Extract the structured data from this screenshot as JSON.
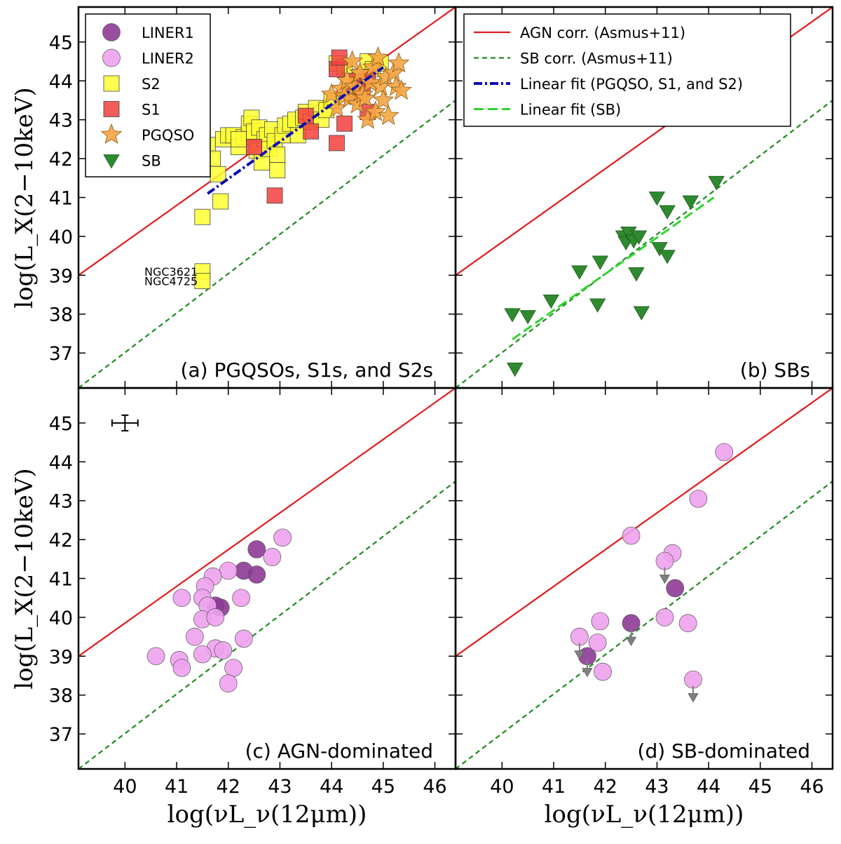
{
  "figure": {
    "ylabel": "log(L_X(2−10keV)",
    "xlabel": "log(νL_ν(12μm))",
    "xlim": [
      39.1,
      46.4
    ],
    "ylim": [
      36.1,
      45.9
    ]
  },
  "colors": {
    "liner1": "#8e3a96",
    "liner2": "#eea2ee",
    "s2": "#ffff33",
    "s1": "#f24040",
    "pgqso": "#f5a543",
    "sb": "#2f8a2f",
    "agn_line": "#e31a1c",
    "sb_line": "#1f8b1f",
    "fit_agn": "#0a0ab4",
    "fit_sb": "#2cd62c",
    "upper": "#808080"
  },
  "chart_data": [
    {
      "type": "scatter",
      "panel": "a",
      "title": "(a) PGQSOs, S1s, and S2s",
      "xticks": [
        40,
        41,
        42,
        43,
        44,
        45,
        46
      ],
      "yticks": [
        37,
        38,
        39,
        40,
        41,
        42,
        43,
        44,
        45
      ],
      "annotations": [
        {
          "text": "NGC3621",
          "x": 41.6,
          "y": 39.1
        },
        {
          "text": "NGC4725",
          "x": 41.6,
          "y": 38.85
        }
      ],
      "series": [
        {
          "name": "S2",
          "marker": "square",
          "color": "s2",
          "points": [
            [
              41.5,
              42.35
            ],
            [
              41.6,
              42.35
            ],
            [
              41.7,
              42.0
            ],
            [
              41.8,
              41.6
            ],
            [
              41.9,
              42.5
            ],
            [
              42.0,
              42.6
            ],
            [
              42.1,
              42.6
            ],
            [
              42.2,
              42.3
            ],
            [
              42.3,
              42.55
            ],
            [
              42.4,
              42.65
            ],
            [
              42.4,
              42.9
            ],
            [
              42.45,
              43.05
            ],
            [
              42.5,
              42.7
            ],
            [
              42.55,
              42.2
            ],
            [
              42.6,
              42.8
            ],
            [
              42.65,
              41.9
            ],
            [
              42.7,
              42.5
            ],
            [
              42.75,
              42.6
            ],
            [
              42.8,
              42.25
            ],
            [
              42.85,
              42.75
            ],
            [
              42.9,
              42.45
            ],
            [
              42.95,
              42.1
            ],
            [
              42.95,
              41.7
            ],
            [
              43.05,
              42.6
            ],
            [
              43.1,
              42.85
            ],
            [
              43.2,
              42.9
            ],
            [
              43.3,
              43.0
            ],
            [
              43.35,
              42.6
            ],
            [
              43.45,
              43.05
            ],
            [
              43.5,
              43.2
            ],
            [
              43.6,
              42.95
            ],
            [
              43.7,
              43.3
            ],
            [
              43.8,
              43.0
            ],
            [
              43.9,
              43.25
            ],
            [
              44.0,
              43.5
            ],
            [
              44.1,
              44.45
            ],
            [
              44.25,
              44.35
            ],
            [
              44.35,
              44.0
            ],
            [
              44.4,
              43.75
            ],
            [
              44.55,
              44.1
            ],
            [
              44.7,
              44.5
            ],
            [
              44.8,
              44.3
            ],
            [
              44.95,
              44.45
            ],
            [
              41.85,
              40.9
            ],
            [
              41.5,
              40.5
            ],
            [
              41.5,
              39.1
            ],
            [
              41.5,
              38.85
            ],
            [
              42.2,
              42.5
            ]
          ]
        },
        {
          "name": "S1",
          "marker": "square",
          "color": "s1",
          "points": [
            [
              42.5,
              42.3
            ],
            [
              42.9,
              41.05
            ],
            [
              43.5,
              43.1
            ],
            [
              43.6,
              42.7
            ],
            [
              44.1,
              44.3
            ],
            [
              44.15,
              44.6
            ],
            [
              44.1,
              42.4
            ],
            [
              44.25,
              42.9
            ],
            [
              44.4,
              43.7
            ],
            [
              44.5,
              44.0
            ],
            [
              44.6,
              43.8
            ],
            [
              44.7,
              44.1
            ],
            [
              44.7,
              43.2
            ]
          ]
        },
        {
          "name": "PGQSO",
          "marker": "star",
          "color": "pgqso",
          "points": [
            [
              44.0,
              43.65
            ],
            [
              44.1,
              43.3
            ],
            [
              44.2,
              43.8
            ],
            [
              44.25,
              43.6
            ],
            [
              44.3,
              44.0
            ],
            [
              44.35,
              43.55
            ],
            [
              44.4,
              44.5
            ],
            [
              44.45,
              43.85
            ],
            [
              44.5,
              43.4
            ],
            [
              44.55,
              44.2
            ],
            [
              44.6,
              43.65
            ],
            [
              44.65,
              43.55
            ],
            [
              44.7,
              43.0
            ],
            [
              44.75,
              43.95
            ],
            [
              44.8,
              44.35
            ],
            [
              44.85,
              43.2
            ],
            [
              44.9,
              44.6
            ],
            [
              44.95,
              43.85
            ],
            [
              45.0,
              43.5
            ],
            [
              45.05,
              44.1
            ],
            [
              45.1,
              43.1
            ],
            [
              45.2,
              44.2
            ],
            [
              45.25,
              43.85
            ],
            [
              45.3,
              44.45
            ],
            [
              45.35,
              43.75
            ]
          ]
        },
        {
          "name": "Linear fit (PGQSO, S1, and S2)",
          "marker": "line",
          "color": "fit_agn",
          "points": [
            [
              41.6,
              41.1
            ],
            [
              45.0,
              44.35
            ]
          ]
        }
      ]
    },
    {
      "type": "scatter",
      "panel": "b",
      "title": "(b) SBs",
      "xticks": [
        40,
        41,
        42,
        43,
        44,
        45,
        46
      ],
      "yticks": [
        37,
        38,
        39,
        40,
        41,
        42,
        43,
        44,
        45
      ],
      "series": [
        {
          "name": "SB",
          "marker": "triangle-down",
          "color": "sb",
          "points": [
            [
              40.2,
              38.0
            ],
            [
              40.25,
              36.6
            ],
            [
              40.5,
              37.95
            ],
            [
              40.95,
              38.35
            ],
            [
              41.5,
              39.1
            ],
            [
              41.85,
              38.25
            ],
            [
              41.9,
              39.35
            ],
            [
              42.35,
              40.0
            ],
            [
              42.4,
              39.85
            ],
            [
              42.45,
              40.1
            ],
            [
              42.55,
              39.9
            ],
            [
              42.6,
              39.05
            ],
            [
              42.65,
              40.0
            ],
            [
              42.7,
              38.05
            ],
            [
              43.0,
              41.0
            ],
            [
              43.05,
              39.7
            ],
            [
              43.2,
              39.5
            ],
            [
              43.2,
              40.65
            ],
            [
              43.65,
              40.9
            ],
            [
              44.15,
              41.4
            ]
          ]
        },
        {
          "name": "Linear fit (SB)",
          "marker": "line",
          "color": "fit_sb",
          "points": [
            [
              40.2,
              37.35
            ],
            [
              44.1,
              41.0
            ]
          ]
        }
      ]
    },
    {
      "type": "scatter",
      "panel": "c",
      "title": "(c) AGN-dominated",
      "xticks": [
        40,
        41,
        42,
        43,
        44,
        45,
        46
      ],
      "yticks": [
        37,
        38,
        39,
        40,
        41,
        42,
        43,
        44,
        45
      ],
      "errorbar": {
        "x": 40.0,
        "y": 45.0,
        "xerr": 0.25,
        "yerr": 0.2
      },
      "series": [
        {
          "name": "LINER1",
          "marker": "circle",
          "color": "liner1",
          "points": [
            [
              42.55,
              41.75
            ],
            [
              42.3,
              41.2
            ],
            [
              42.55,
              41.1
            ],
            [
              41.85,
              40.25
            ],
            [
              41.75,
              40.3
            ]
          ]
        },
        {
          "name": "LINER2",
          "marker": "circle",
          "color": "liner2",
          "points": [
            [
              43.05,
              42.05
            ],
            [
              42.85,
              41.55
            ],
            [
              42.0,
              41.2
            ],
            [
              41.7,
              41.05
            ],
            [
              41.55,
              40.8
            ],
            [
              41.1,
              40.5
            ],
            [
              41.5,
              40.5
            ],
            [
              41.6,
              40.3
            ],
            [
              42.25,
              40.5
            ],
            [
              41.5,
              39.95
            ],
            [
              41.75,
              40.0
            ],
            [
              41.35,
              39.5
            ],
            [
              41.75,
              39.2
            ],
            [
              41.9,
              39.15
            ],
            [
              41.5,
              39.05
            ],
            [
              41.05,
              38.9
            ],
            [
              41.1,
              38.7
            ],
            [
              40.6,
              39.0
            ],
            [
              42.1,
              38.7
            ],
            [
              42.3,
              39.45
            ],
            [
              42.0,
              38.3
            ]
          ]
        }
      ]
    },
    {
      "type": "scatter",
      "panel": "d",
      "title": "(d) SB-dominated",
      "xticks": [
        40,
        41,
        42,
        43,
        44,
        45,
        46
      ],
      "yticks": [
        37,
        38,
        39,
        40,
        41,
        42,
        43,
        44,
        45
      ],
      "series": [
        {
          "name": "LINER1",
          "marker": "circle",
          "color": "liner1",
          "points": [
            [
              43.35,
              40.75
            ],
            [
              42.5,
              39.85
            ],
            [
              41.65,
              39.0
            ]
          ]
        },
        {
          "name": "LINER2",
          "marker": "circle",
          "color": "liner2",
          "points": [
            [
              44.3,
              44.25
            ],
            [
              43.8,
              43.05
            ],
            [
              42.5,
              42.1
            ],
            [
              43.3,
              41.65
            ],
            [
              43.15,
              41.45
            ],
            [
              43.15,
              40.0
            ],
            [
              43.6,
              39.85
            ],
            [
              41.9,
              39.9
            ],
            [
              41.5,
              39.5
            ],
            [
              41.85,
              39.35
            ],
            [
              41.95,
              38.6
            ],
            [
              43.7,
              38.4
            ]
          ]
        },
        {
          "name": "upper limits",
          "marker": "arrow-down",
          "color": "upper",
          "points": [
            [
              43.15,
              41.0
            ],
            [
              42.5,
              39.4
            ],
            [
              41.5,
              39.05
            ],
            [
              41.65,
              38.6
            ],
            [
              43.7,
              37.95
            ]
          ]
        }
      ]
    }
  ],
  "reference_lines": {
    "agn": {
      "label": "AGN corr. (Asmus+11)",
      "points": [
        [
          39.1,
          39.0
        ],
        [
          46.4,
          45.9
        ]
      ]
    },
    "sb": {
      "label": "SB corr. (Asmus+11)",
      "points": [
        [
          39.1,
          36.1
        ],
        [
          46.4,
          43.5
        ]
      ]
    }
  },
  "legends": {
    "a": [
      {
        "label": "LINER1",
        "marker": "circle",
        "color": "liner1"
      },
      {
        "label": "LINER2",
        "marker": "circle",
        "color": "liner2"
      },
      {
        "label": "S2",
        "marker": "square",
        "color": "s2"
      },
      {
        "label": "S1",
        "marker": "square",
        "color": "s1"
      },
      {
        "label": "PGQSO",
        "marker": "star",
        "color": "pgqso"
      },
      {
        "label": "SB",
        "marker": "triangle-down",
        "color": "sb"
      }
    ],
    "b": [
      {
        "label": "AGN corr. (Asmus+11)",
        "style": "solid",
        "color": "agn_line"
      },
      {
        "label": "SB corr. (Asmus+11)",
        "style": "dashed",
        "color": "sb_line"
      },
      {
        "label": "Linear fit (PGQSO, S1, and S2)",
        "style": "dashdot",
        "color": "fit_agn"
      },
      {
        "label": "Linear fit (SB)",
        "style": "longdash",
        "color": "fit_sb"
      }
    ]
  }
}
